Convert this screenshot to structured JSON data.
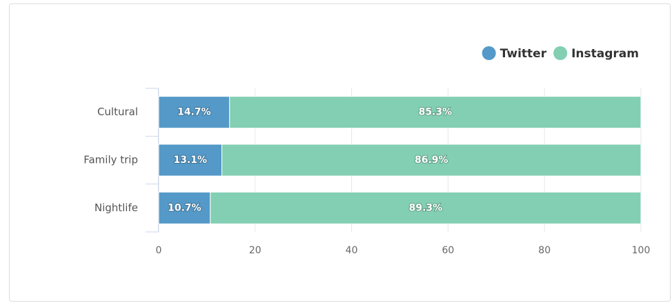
{
  "chart_data": {
    "type": "stacked_bar_horizontal",
    "categories": [
      "Cultural",
      "Family trip",
      "Nightlife"
    ],
    "series": [
      {
        "name": "Twitter",
        "color": "#5499c7",
        "values": [
          14.7,
          13.1,
          10.7
        ],
        "value_labels": [
          "14.7%",
          "13.1%",
          "10.7%"
        ]
      },
      {
        "name": "Instagram",
        "color": "#82cfb4",
        "values": [
          85.3,
          86.9,
          89.3
        ],
        "value_labels": [
          "85.3%",
          "86.9%",
          "89.3%"
        ]
      }
    ],
    "xlim": [
      0,
      100
    ],
    "xticks": [
      0,
      20,
      40,
      60,
      80,
      100
    ],
    "grid": true,
    "legend": "top-right"
  }
}
